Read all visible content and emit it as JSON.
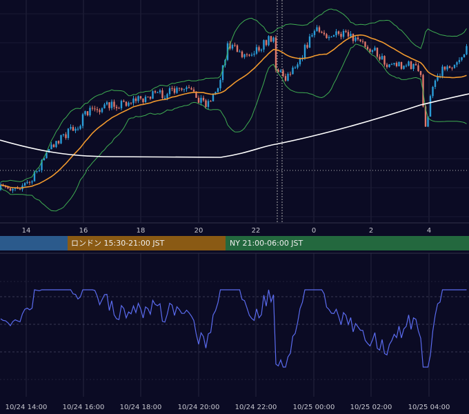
{
  "time_axis": {
    "labels": [
      "14",
      "16",
      "18",
      "20",
      "22",
      "0",
      "2",
      "4"
    ]
  },
  "sessions": {
    "london": "ロンドン 15:30-21:00 JST",
    "new_york": "NY 21:00-06:00 JST"
  },
  "indicator_time_axis": {
    "labels": [
      "10/24 14:00",
      "10/24 16:00",
      "10/24 18:00",
      "10/24 20:00",
      "10/24 22:00",
      "10/25 00:00",
      "10/25 02:00",
      "10/25 04:00"
    ]
  }
}
